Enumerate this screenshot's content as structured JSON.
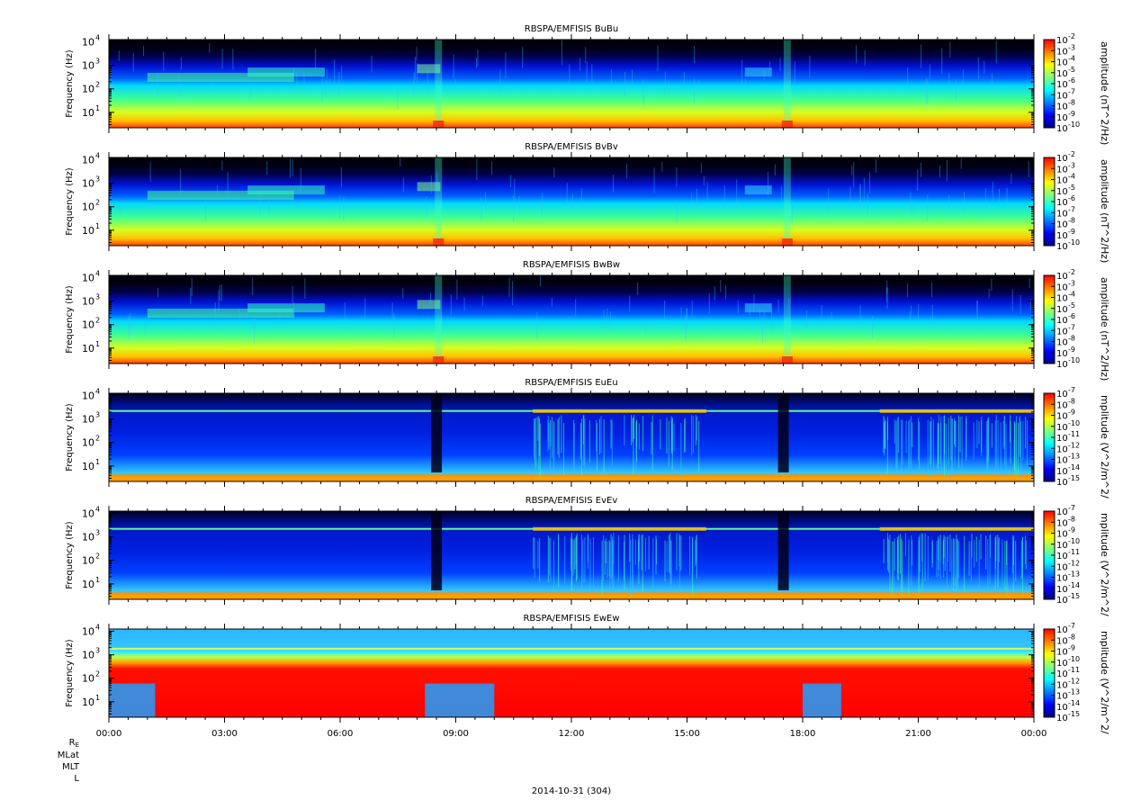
{
  "chart_data": [
    {
      "type": "heatmap",
      "title": "RBSPA/EMFISIS  BuBu",
      "ylabel": "Frequency (Hz)",
      "yscale": "log",
      "yticks": [
        "10",
        "10",
        "10",
        "10"
      ],
      "ytick_exponents": [
        "1",
        "2",
        "3",
        "4"
      ],
      "colorbar_label": "amplitude (nT^2/Hz)",
      "colorbar_ticks": [
        "10",
        "10",
        "10",
        "10",
        "10",
        "10",
        "10",
        "10",
        "10"
      ],
      "colorbar_exponents": [
        "-2",
        "-3",
        "-4",
        "-5",
        "-6",
        "-7",
        "-8",
        "-9",
        "-10"
      ],
      "colorbar_range": [
        -10,
        -2
      ],
      "kind": "B",
      "variant": "u"
    },
    {
      "type": "heatmap",
      "title": "RBSPA/EMFISIS  BvBv",
      "ylabel": "Frequency (Hz)",
      "yscale": "log",
      "yticks": [
        "10",
        "10",
        "10",
        "10"
      ],
      "ytick_exponents": [
        "1",
        "2",
        "3",
        "4"
      ],
      "colorbar_label": "amplitude (nT^2/Hz)",
      "colorbar_ticks": [
        "10",
        "10",
        "10",
        "10",
        "10",
        "10",
        "10",
        "10",
        "10"
      ],
      "colorbar_exponents": [
        "-2",
        "-3",
        "-4",
        "-5",
        "-6",
        "-7",
        "-8",
        "-9",
        "-10"
      ],
      "colorbar_range": [
        -10,
        -2
      ],
      "kind": "B",
      "variant": "v"
    },
    {
      "type": "heatmap",
      "title": "RBSPA/EMFISIS  BwBw",
      "ylabel": "Frequency (Hz)",
      "yscale": "log",
      "yticks": [
        "10",
        "10",
        "10",
        "10"
      ],
      "ytick_exponents": [
        "1",
        "2",
        "3",
        "4"
      ],
      "colorbar_label": "amplitude (nT^2/Hz)",
      "colorbar_ticks": [
        "10",
        "10",
        "10",
        "10",
        "10",
        "10",
        "10",
        "10",
        "10"
      ],
      "colorbar_exponents": [
        "-2",
        "-3",
        "-4",
        "-5",
        "-6",
        "-7",
        "-8",
        "-9",
        "-10"
      ],
      "colorbar_range": [
        -10,
        -2
      ],
      "kind": "B",
      "variant": "w"
    },
    {
      "type": "heatmap",
      "title": "RBSPA/EMFISIS  EuEu",
      "ylabel": "Frequency (Hz)",
      "yscale": "log",
      "yticks": [
        "10",
        "10",
        "10",
        "10"
      ],
      "ytick_exponents": [
        "1",
        "2",
        "3",
        "4"
      ],
      "colorbar_label": "mplitude (V^2/m^2/",
      "colorbar_ticks": [
        "10",
        "10",
        "10",
        "10",
        "10",
        "10",
        "10",
        "10",
        "10"
      ],
      "colorbar_exponents": [
        "-7",
        "-8",
        "-9",
        "-10",
        "-11",
        "-12",
        "-13",
        "-14",
        "-15"
      ],
      "colorbar_range": [
        -15,
        -7
      ],
      "kind": "E",
      "variant": "u"
    },
    {
      "type": "heatmap",
      "title": "RBSPA/EMFISIS  EvEv",
      "ylabel": "Frequency (Hz)",
      "yscale": "log",
      "yticks": [
        "10",
        "10",
        "10",
        "10"
      ],
      "ytick_exponents": [
        "1",
        "2",
        "3",
        "4"
      ],
      "colorbar_label": "mplitude (V^2/m^2/",
      "colorbar_ticks": [
        "10",
        "10",
        "10",
        "10",
        "10",
        "10",
        "10",
        "10",
        "10"
      ],
      "colorbar_exponents": [
        "-7",
        "-8",
        "-9",
        "-10",
        "-11",
        "-12",
        "-13",
        "-14",
        "-15"
      ],
      "colorbar_range": [
        -15,
        -7
      ],
      "kind": "E",
      "variant": "v"
    },
    {
      "type": "heatmap",
      "title": "RBSPA/EMFISIS  EwEw",
      "ylabel": "Frequency (Hz)",
      "yscale": "log",
      "yticks": [
        "10",
        "10",
        "10",
        "10"
      ],
      "ytick_exponents": [
        "1",
        "2",
        "3",
        "4"
      ],
      "colorbar_label": "mplitude (V^2/m^2/",
      "colorbar_ticks": [
        "10",
        "10",
        "10",
        "10",
        "10",
        "10",
        "10",
        "10",
        "10"
      ],
      "colorbar_exponents": [
        "-7",
        "-8",
        "-9",
        "-10",
        "-11",
        "-12",
        "-13",
        "-14",
        "-15"
      ],
      "colorbar_range": [
        -15,
        -7
      ],
      "kind": "EW",
      "variant": "w"
    }
  ],
  "x_axis": {
    "ticks": [
      "00:00",
      "03:00",
      "06:00",
      "09:00",
      "12:00",
      "15:00",
      "18:00",
      "21:00",
      "00:00"
    ],
    "range_hours": [
      0,
      24
    ],
    "date_label": "2014-10-31 (304)"
  },
  "ephemeris_labels": {
    "re_main": "R",
    "re_sub": "E",
    "mlat": "MLat",
    "mlt": "MLT",
    "l": "L"
  }
}
